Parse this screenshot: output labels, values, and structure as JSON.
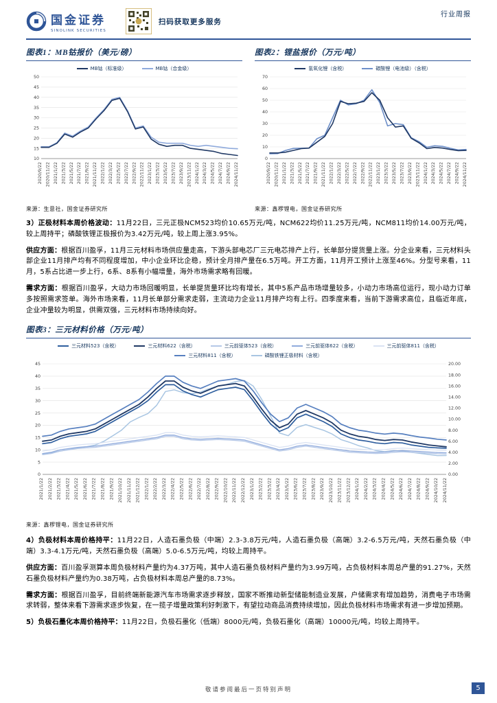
{
  "header": {
    "brand": "国金证券",
    "brand_en": "SINOLINK SECURITIES",
    "qr_text": "扫码获取更多服务",
    "report_type": "行业周报"
  },
  "colors": {
    "accent": "#2F5597",
    "title_navy": "#17375E"
  },
  "sections": {
    "p3": {
      "lead": "3）正极材料本周价格波动：",
      "text": "11月22日，三元正极NCM523均价10.65万元/吨，NCM622均价11.25万元/吨，NCM811均价14.00万元/吨，较上周持平；磷酸铁锂正极报价为3.42万元/吨，较上周上涨3.95%。"
    },
    "p3s": {
      "lead": "供应方面：",
      "text": "根据百川盈孚，11月三元材料市场供应量走高，下游头部电芯厂三元电芯排产上行，长单部分提货量上涨。分企业来看，三元材料头部企业11月排产均有不同程度增加，中小企业环比企稳，预计全月排产量在6.5万吨。开工方面，11月开工预计上涨至46%。分型号来看，11月，5系占比进一步上行，6系、8系有小幅增量，海外市场需求略有回暖。"
    },
    "p3d": {
      "lead": "需求方面：",
      "text": "根据百川盈孚，大动力市场回暖明显，长单提货量环比均有增长，其中5系产品市场增量较多，小动力市场高位运行，现小动力订单多按照需求签单。海外市场来看，11月长单部分需求走弱，主流动力企业11月排产均有上行。四季度来看，当前下游需求高位，且临近年底，企业冲量较为明显，供需双强，三元材料市场持续向好。"
    },
    "p4": {
      "lead": "4）负极材料本周价格持平：",
      "text": "11月22日，人造石墨负极（中端）2.3-3.8万元/吨，人造石墨负极（高端）3.2-6.5万元/吨，天然石墨负极（中端）3.3-4.1万元/吨，天然石墨负极（高端）5.0-6.5万元/吨，均较上周持平。"
    },
    "p4s": {
      "lead": "供应方面：",
      "text": "百川盈孚测算本周负极材料产量约为4.37万吨，其中人造石墨负极材料产量约为3.99万吨，占负极材料本周总产量的91.27%，天然石墨负极材料产量约为0.38万吨，占负极材料本周总产量的8.73%。"
    },
    "p4d": {
      "lead": "需求方面：",
      "text": "根据百川盈孚，目前终端新能源汽车市场需求逐步释放，国家不断推动新型储能制造业发展，户储需求有增加趋势，消费电子市场需求转弱，整体来看下游需求逐步恢复，在一揽子增量政策利好刺激下，有望拉动商品消费持续增加，因此负极材料市场需求有进一步增加预期。"
    },
    "p5": {
      "lead": "5）负极石墨化本周价格持平：",
      "text": "11月22日，负极石墨化（低端）8000元/吨，负极石墨化（高端）10000元/吨，均较上周持平。"
    }
  },
  "footer": {
    "disclaimer": "敬请参阅最后一页特别声明",
    "page": "5"
  },
  "chart_data": [
    {
      "id": "c1",
      "type": "line",
      "title": "图表1：MB钴报价（美元/磅）",
      "source": "来源：生意社，国金证券研究所",
      "left_axis": {
        "min": 10,
        "max": 50,
        "step": 5
      },
      "categories": [
        "2020/9/22",
        "2020/11/22",
        "2021/1/22",
        "2021/3/22",
        "2021/5/22",
        "2021/7/22",
        "2021/9/22",
        "2021/11/22",
        "2022/1/22",
        "2022/3/22",
        "2022/5/22",
        "2022/7/22",
        "2022/9/22",
        "2022/11/22",
        "2023/1/22",
        "2023/3/22",
        "2023/5/22",
        "2023/7/22",
        "2023/9/22",
        "2023/11/22",
        "2024/1/22",
        "2024/3/22",
        "2024/5/22",
        "2024/7/22",
        "2024/9/22",
        "2024/11/22"
      ],
      "series": [
        {
          "name": "MB钴（标准级）",
          "color": "#1F3864",
          "width": 1.6,
          "axis": "left",
          "values": [
            15.5,
            15.5,
            17.5,
            22,
            20.5,
            23,
            25,
            29.5,
            33.5,
            38.5,
            39.5,
            33,
            24.5,
            25.5,
            19.5,
            17,
            16,
            16.5,
            16.5,
            15,
            14.5,
            14,
            13.5,
            12.5,
            12,
            11.5
          ]
        },
        {
          "name": "MB钴（合金级）",
          "color": "#8FAADC",
          "width": 1.6,
          "axis": "left",
          "values": [
            15.8,
            15.8,
            17.8,
            22.5,
            21,
            23.5,
            25.5,
            30,
            34,
            39,
            40,
            33.5,
            25,
            26,
            20.5,
            18,
            17.5,
            17.5,
            17.5,
            16.5,
            16,
            16.5,
            16,
            15.5,
            15,
            14.8
          ]
        }
      ]
    },
    {
      "id": "c2",
      "type": "line",
      "title": "图表2：锂盐报价（万元/吨）",
      "source": "来源：鑫椤锂电，国金证券研究所",
      "left_axis": {
        "min": 0,
        "max": 70,
        "step": 10
      },
      "categories": [
        "2020/9/22",
        "2020/11/22",
        "2021/1/22",
        "2021/3/22",
        "2021/5/22",
        "2021/7/22",
        "2021/9/22",
        "2021/11/22",
        "2022/1/22",
        "2022/3/22",
        "2022/5/22",
        "2022/7/22",
        "2022/9/22",
        "2022/11/22",
        "2023/1/22",
        "2023/3/22",
        "2023/5/22",
        "2023/7/22",
        "2023/9/22",
        "2023/11/22",
        "2024/1/22",
        "2024/3/22",
        "2024/5/22",
        "2024/7/22",
        "2024/9/22",
        "2024/11/22"
      ],
      "series": [
        {
          "name": "氢氧化锂（含税）",
          "color": "#1F3864",
          "width": 1.6,
          "axis": "left",
          "values": [
            4.8,
            4.8,
            5.5,
            7,
            8.5,
            9,
            14,
            19,
            30,
            49,
            47,
            47.5,
            49,
            56.5,
            50,
            35,
            27,
            28,
            17.5,
            13.5,
            8.5,
            9.5,
            9,
            7.8,
            6.8,
            7
          ]
        },
        {
          "name": "碳酸锂（电池级）（含税）",
          "color": "#6D8FC9",
          "width": 1.6,
          "axis": "left",
          "values": [
            4.2,
            4.3,
            7,
            8.7,
            8.9,
            9,
            17,
            20,
            35,
            50,
            46,
            47,
            50,
            59,
            48,
            28,
            30,
            29,
            18,
            14.5,
            9.7,
            11,
            10.5,
            8.8,
            7.4,
            7.8
          ]
        }
      ]
    },
    {
      "id": "c3",
      "type": "line",
      "title": "图表3：三元材料价格（万元/吨）",
      "source": "来源：鑫椤锂电，国金证券研究所",
      "left_axis": {
        "min": 0,
        "max": 45,
        "step": 5
      },
      "right_axis": {
        "min": 0,
        "max": 20,
        "step": 2,
        "decimals": 2
      },
      "categories": [
        "2021/1/22",
        "2021/2/22",
        "2021/3/22",
        "2021/4/22",
        "2021/5/22",
        "2021/6/22",
        "2021/7/22",
        "2021/8/22",
        "2021/9/22",
        "2021/10/22",
        "2021/11/22",
        "2021/12/22",
        "2022/1/22",
        "2022/2/22",
        "2022/3/22",
        "2022/4/22",
        "2022/5/22",
        "2022/6/22",
        "2022/7/22",
        "2022/8/22",
        "2022/9/22",
        "2022/10/22",
        "2022/11/22",
        "2022/12/22",
        "2023/1/22",
        "2023/2/22",
        "2023/3/22",
        "2023/4/22",
        "2023/5/22",
        "2023/6/22",
        "2023/7/22",
        "2023/8/22",
        "2023/9/22",
        "2023/10/22",
        "2023/11/22",
        "2023/12/22",
        "2024/1/22",
        "2024/2/22",
        "2024/3/22",
        "2024/4/22",
        "2024/5/22",
        "2024/6/22",
        "2024/7/22",
        "2024/8/22",
        "2024/9/22",
        "2024/10/22",
        "2024/11/22"
      ],
      "series": [
        {
          "name": "三元材料523（含税）",
          "color": "#2E5E9E",
          "width": 1.7,
          "axis": "left",
          "values": [
            12.5,
            13,
            14.5,
            15.5,
            16,
            16.5,
            17.5,
            19.5,
            21.5,
            23.5,
            25.5,
            27.5,
            30,
            33.5,
            36.5,
            36.5,
            34,
            32.5,
            31.5,
            33,
            34.5,
            35,
            35.5,
            34.5,
            30,
            25,
            20.5,
            17.5,
            19,
            23,
            24.5,
            23,
            21.5,
            19.5,
            16.5,
            15,
            14,
            13.5,
            12.8,
            12.5,
            13,
            12.8,
            12,
            11.5,
            11,
            10.8,
            10.65
          ]
        },
        {
          "name": "三元材料622（含税）",
          "color": "#1F3864",
          "width": 1.8,
          "axis": "left",
          "values": [
            13.5,
            14,
            15.5,
            16.5,
            17,
            17.5,
            18.5,
            20.5,
            22.5,
            24.5,
            26.5,
            28.5,
            31.5,
            35,
            38,
            38,
            35.5,
            34,
            33,
            34.5,
            36,
            36.5,
            37,
            36,
            31.5,
            26.5,
            22,
            19,
            20.5,
            24.5,
            26,
            24.5,
            23,
            21,
            18,
            16.5,
            15.5,
            15,
            14.2,
            13.8,
            14.2,
            14,
            13.2,
            12.6,
            12,
            11.6,
            11.25
          ]
        },
        {
          "name": "三元前驱体523（含税）",
          "color": "#B4C7E7",
          "width": 1.3,
          "axis": "left",
          "values": [
            8,
            8.5,
            9.5,
            10,
            10.5,
            10.8,
            11,
            11.5,
            12,
            12.5,
            13,
            13.5,
            14,
            14.5,
            15.5,
            15.5,
            14.5,
            14,
            13.8,
            14,
            14.2,
            14,
            13.8,
            13.5,
            12.5,
            11.5,
            10.5,
            9.5,
            10,
            11,
            11.5,
            11,
            10.5,
            10,
            9.5,
            9,
            8.8,
            8.6,
            8.5,
            8.6,
            9,
            9.2,
            9,
            8.8,
            8.6,
            8.4,
            8.3
          ]
        },
        {
          "name": "三元前驱体622（含税）",
          "color": "#8FAADC",
          "width": 1.3,
          "axis": "left",
          "values": [
            8.5,
            9,
            10,
            10.5,
            11,
            11.3,
            11.5,
            12,
            12.5,
            13,
            13.5,
            14,
            14.5,
            15,
            16,
            16,
            15,
            14.5,
            14.3,
            14.5,
            14.7,
            14.5,
            14.3,
            14,
            13,
            12,
            11,
            10,
            10.5,
            11.5,
            12,
            11.5,
            11,
            10.5,
            10,
            9.5,
            9.3,
            9.1,
            9,
            9.1,
            9.5,
            9.7,
            9.5,
            9.3,
            9.1,
            8.9,
            8.8
          ]
        },
        {
          "name": "三元前驱体811（含税）",
          "color": "#D9E2F3",
          "width": 1.3,
          "axis": "left",
          "values": [
            9.5,
            10,
            11,
            11.5,
            12,
            12.3,
            12.5,
            13,
            13.5,
            14,
            14.5,
            15,
            15.5,
            16,
            17,
            17,
            16,
            15.5,
            15.3,
            15.5,
            15.7,
            15.5,
            15.3,
            15,
            14,
            13,
            12,
            11,
            11.5,
            12.5,
            13,
            12.5,
            12,
            11.5,
            11,
            10.5,
            10.3,
            10.1,
            10,
            10.1,
            10.5,
            10.7,
            10.5,
            10.3,
            10.1,
            9.9,
            9.8
          ]
        },
        {
          "name": "三元材料811（含税）",
          "color": "#567FBF",
          "width": 1.7,
          "axis": "left",
          "values": [
            15.5,
            16,
            17.5,
            18.5,
            19,
            19.5,
            20.5,
            22.5,
            24.5,
            26.5,
            28.5,
            30.5,
            33.5,
            37,
            40,
            40,
            37.5,
            36,
            35,
            36.5,
            38,
            38.5,
            39,
            38,
            34,
            29,
            24.5,
            21.5,
            23,
            27,
            28.5,
            27,
            25.5,
            23.5,
            20.5,
            19,
            18,
            17.5,
            16.8,
            16.4,
            16.8,
            16.5,
            15.8,
            15.2,
            14.8,
            14.3,
            14.0
          ]
        },
        {
          "name": "磷酸铁锂正极材料（含税）",
          "color": "#A8C5E2",
          "width": 1.5,
          "axis": "right",
          "values": [
            3.7,
            3.9,
            4.2,
            4.5,
            4.8,
            5,
            5.3,
            6,
            7,
            8,
            9.5,
            10.3,
            11,
            12.5,
            15,
            15.3,
            14.8,
            14.6,
            14.9,
            15.5,
            16,
            16.3,
            16.8,
            17,
            16,
            13.5,
            10.5,
            7.5,
            7,
            8.5,
            9,
            8.5,
            8,
            7.3,
            6.3,
            5.8,
            5.2,
            4.8,
            4.3,
            4.1,
            4.3,
            4.2,
            4,
            3.8,
            3.6,
            3.4,
            3.42
          ]
        }
      ]
    }
  ]
}
